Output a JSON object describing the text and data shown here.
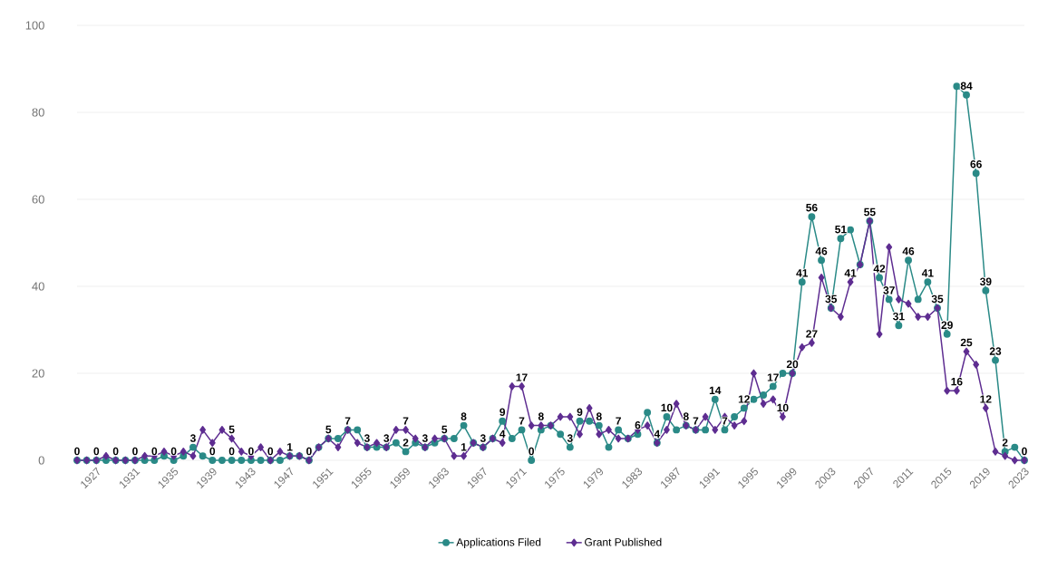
{
  "chart_data": {
    "type": "line",
    "x": [
      1925,
      1926,
      1927,
      1928,
      1929,
      1930,
      1931,
      1932,
      1933,
      1934,
      1935,
      1936,
      1937,
      1938,
      1939,
      1940,
      1941,
      1942,
      1943,
      1944,
      1945,
      1946,
      1947,
      1948,
      1949,
      1950,
      1951,
      1952,
      1953,
      1954,
      1955,
      1956,
      1957,
      1958,
      1959,
      1960,
      1961,
      1962,
      1963,
      1964,
      1965,
      1966,
      1967,
      1968,
      1969,
      1970,
      1971,
      1972,
      1973,
      1974,
      1975,
      1976,
      1977,
      1978,
      1979,
      1980,
      1981,
      1982,
      1983,
      1984,
      1985,
      1986,
      1987,
      1988,
      1989,
      1990,
      1991,
      1992,
      1993,
      1994,
      1995,
      1996,
      1997,
      1998,
      1999,
      2000,
      2001,
      2002,
      2003,
      2004,
      2005,
      2006,
      2007,
      2008,
      2009,
      2010,
      2011,
      2012,
      2013,
      2014,
      2015,
      2016,
      2017,
      2018,
      2019,
      2020,
      2021,
      2022,
      2023
    ],
    "series": [
      {
        "name": "Applications Filed",
        "color": "#2a8a87",
        "marker": "circle",
        "values": [
          0,
          0,
          0,
          0,
          0,
          0,
          0,
          0,
          0,
          1,
          0,
          1,
          3,
          1,
          0,
          0,
          0,
          0,
          0,
          0,
          0,
          0,
          1,
          1,
          0,
          3,
          5,
          5,
          7,
          7,
          3,
          3,
          3,
          4,
          2,
          4,
          3,
          4,
          5,
          5,
          8,
          4,
          3,
          5,
          9,
          5,
          7,
          0,
          7,
          8,
          6,
          3,
          9,
          9,
          8,
          3,
          7,
          5,
          6,
          11,
          4,
          10,
          7,
          8,
          7,
          7,
          14,
          7,
          10,
          12,
          14,
          15,
          17,
          20,
          20,
          41,
          56,
          46,
          35,
          51,
          53,
          45,
          55,
          42,
          37,
          31,
          46,
          37,
          41,
          35,
          29,
          86,
          84,
          66,
          39,
          23,
          2,
          3,
          0
        ],
        "value_labels": [
          "0",
          null,
          "0",
          null,
          "0",
          null,
          "0",
          null,
          "0",
          null,
          "0",
          null,
          "3",
          null,
          "0",
          null,
          "0",
          null,
          "0",
          null,
          "0",
          null,
          "1",
          null,
          "0",
          null,
          "5",
          null,
          "7",
          null,
          "3",
          null,
          "3",
          null,
          "2",
          null,
          "3",
          null,
          "5",
          null,
          "8",
          null,
          "3",
          null,
          "9",
          null,
          "7",
          "0",
          null,
          null,
          null,
          "3",
          "9",
          null,
          "8",
          null,
          "7",
          null,
          "6",
          null,
          "4",
          "10",
          null,
          "8",
          "7",
          null,
          "14",
          "7",
          null,
          "12",
          null,
          null,
          "17",
          null,
          null,
          "41",
          "56",
          "46",
          null,
          "51",
          null,
          null,
          "55",
          "42",
          "37",
          "31",
          "46",
          null,
          "41",
          null,
          "29",
          null,
          "84",
          "66",
          "39",
          "23",
          "2",
          null,
          "0"
        ]
      },
      {
        "name": "Grant Published",
        "color": "#5e2d91",
        "marker": "diamond",
        "values": [
          0,
          0,
          0,
          1,
          0,
          0,
          0,
          1,
          1,
          2,
          1,
          2,
          1,
          7,
          4,
          7,
          5,
          2,
          1,
          3,
          0,
          2,
          1,
          1,
          0,
          3,
          5,
          3,
          7,
          4,
          3,
          4,
          3,
          7,
          7,
          5,
          3,
          5,
          5,
          1,
          1,
          4,
          3,
          5,
          4,
          17,
          17,
          8,
          8,
          8,
          10,
          10,
          6,
          12,
          6,
          7,
          5,
          5,
          7,
          8,
          4,
          7,
          13,
          8,
          7,
          10,
          7,
          10,
          8,
          9,
          20,
          13,
          14,
          10,
          20,
          26,
          27,
          42,
          35,
          33,
          41,
          45,
          55,
          29,
          49,
          37,
          36,
          33,
          33,
          35,
          16,
          16,
          25,
          22,
          12,
          2,
          1,
          0,
          0
        ],
        "value_labels": [
          null,
          null,
          null,
          null,
          null,
          null,
          null,
          null,
          null,
          null,
          null,
          null,
          null,
          null,
          null,
          null,
          "5",
          null,
          null,
          null,
          null,
          null,
          null,
          null,
          null,
          null,
          null,
          null,
          null,
          null,
          null,
          null,
          null,
          null,
          "7",
          null,
          null,
          null,
          null,
          null,
          "1",
          null,
          null,
          null,
          "4",
          null,
          "17",
          null,
          "8",
          null,
          null,
          null,
          null,
          null,
          null,
          null,
          null,
          null,
          null,
          null,
          null,
          null,
          null,
          null,
          null,
          null,
          null,
          null,
          null,
          null,
          null,
          null,
          null,
          "10",
          "20",
          null,
          "27",
          null,
          "35",
          null,
          "41",
          null,
          null,
          null,
          null,
          null,
          null,
          null,
          null,
          "35",
          null,
          "16",
          "25",
          null,
          "12",
          null,
          null,
          null,
          null
        ]
      }
    ],
    "xlim": [
      1925,
      2023
    ],
    "xticks": [
      1927,
      1931,
      1935,
      1939,
      1943,
      1947,
      1951,
      1955,
      1959,
      1963,
      1967,
      1971,
      1975,
      1979,
      1983,
      1987,
      1991,
      1995,
      1999,
      2003,
      2007,
      2011,
      2015,
      2019,
      2023
    ],
    "ylim": [
      0,
      100
    ],
    "yticks": [
      0,
      20,
      40,
      60,
      80,
      100
    ],
    "grid": "y",
    "legend": "bottom"
  }
}
